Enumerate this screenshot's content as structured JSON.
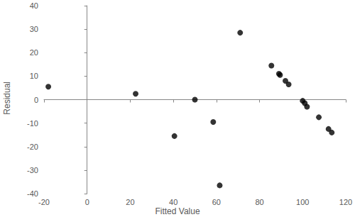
{
  "chart_data": {
    "type": "scatter",
    "x_label": "Fitted Value",
    "y_label": "Residual",
    "x": [
      -18,
      22.5,
      40.5,
      50,
      58.5,
      61.5,
      71,
      85.5,
      89,
      89.5,
      92,
      93.5,
      100,
      101,
      102,
      107.5,
      112,
      113.5
    ],
    "values": [
      5.5,
      2.5,
      -15.5,
      0,
      -9.5,
      -36.5,
      28.5,
      14.5,
      11,
      10.5,
      8,
      6.5,
      -0.5,
      -1.5,
      -3,
      -7.5,
      -12.5,
      -14
    ],
    "color": "#000000",
    "marker": "circle",
    "xlim": [
      -20,
      120
    ],
    "xticks": [
      -20,
      0,
      20,
      40,
      60,
      80,
      100,
      120
    ],
    "ylim": [
      -40,
      40
    ],
    "yticks": [
      -40,
      -30,
      -20,
      -10,
      0,
      10,
      20,
      30,
      40
    ],
    "grid": false
  }
}
